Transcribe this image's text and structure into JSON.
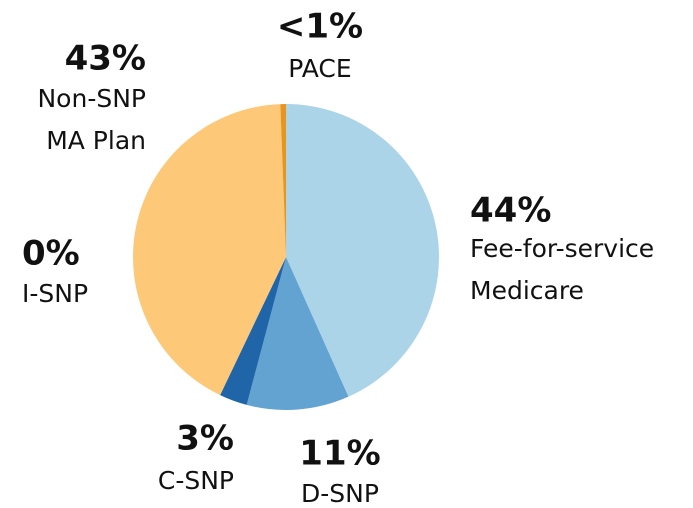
{
  "chart_data": {
    "type": "pie",
    "categories": [
      [
        "Fee-for-service",
        "Medicare"
      ],
      [
        "D-SNP"
      ],
      [
        "C-SNP"
      ],
      [
        "I-SNP"
      ],
      [
        "Non-SNP",
        "MA Plan"
      ],
      [
        "PACE"
      ]
    ],
    "values": [
      44,
      11,
      3,
      0,
      43,
      0.6
    ],
    "value_labels": [
      "44%",
      "11%",
      "3%",
      "0%",
      "43%",
      "<1%"
    ],
    "colors": [
      "#abd4e8",
      "#62a3d2",
      "#1f65a8",
      "#1b4f86",
      "#fdc877",
      "#e8951f"
    ]
  }
}
